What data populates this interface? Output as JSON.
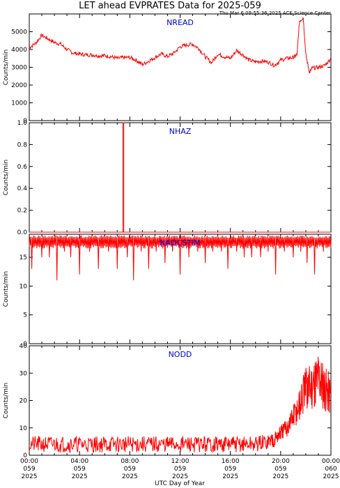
{
  "header": {
    "title": "LET ahead EVPRATES Data for 2025-059",
    "timestamp": "Thu Mar  6 09:55:36 2025 ACE Science Center"
  },
  "colors": {
    "line": "#ff0000",
    "panel_title": "#0000cc",
    "axis": "#000000"
  },
  "x_axis": {
    "label": "UTC Day of Year",
    "range_hours": [
      0,
      24
    ],
    "ticks": [
      {
        "hours": 0,
        "time": "00:00",
        "doy": "059",
        "year": "2025"
      },
      {
        "hours": 4,
        "time": "04:00",
        "doy": "059",
        "year": "2025"
      },
      {
        "hours": 8,
        "time": "08:00",
        "doy": "059",
        "year": "2025"
      },
      {
        "hours": 12,
        "time": "12:00",
        "doy": "059",
        "year": "2025"
      },
      {
        "hours": 16,
        "time": "16:00",
        "doy": "059",
        "year": "2025"
      },
      {
        "hours": 20,
        "time": "20:00",
        "doy": "059",
        "year": "2025"
      },
      {
        "hours": 24,
        "time": "00:00",
        "doy": "060",
        "year": "2025"
      }
    ]
  },
  "chart_data": [
    {
      "type": "line",
      "title": "NREAD",
      "ylabel": "Counts/min",
      "ylim": [
        0,
        6000
      ],
      "yticks": [
        0,
        1000,
        2000,
        3000,
        4000,
        5000
      ],
      "series": [
        {
          "x": [
            0,
            0.5,
            1,
            1.5,
            2,
            2.5,
            3,
            3.5,
            4,
            4.5,
            5,
            5.5,
            6,
            6.5,
            7,
            7.5,
            8,
            8.5,
            9,
            9.5,
            10,
            10.5,
            11,
            11.5,
            12,
            12.5,
            13,
            13.5,
            14,
            14.5,
            15,
            15.5,
            16,
            16.5,
            17,
            17.5,
            18,
            18.5,
            19,
            19.5,
            20,
            20.5,
            21,
            21.3,
            21.5,
            21.8,
            22,
            22.3,
            22.5,
            23,
            23.5,
            24
          ],
          "values": [
            4100,
            4350,
            4800,
            4600,
            4400,
            4300,
            4000,
            3800,
            3750,
            3700,
            3700,
            3650,
            3650,
            3600,
            3500,
            3550,
            3550,
            3400,
            3150,
            3350,
            3550,
            3750,
            3600,
            3800,
            4150,
            4250,
            4300,
            4050,
            3600,
            3250,
            3750,
            3600,
            3500,
            3950,
            3700,
            3400,
            3300,
            3350,
            3300,
            3100,
            3400,
            3500,
            3550,
            3700,
            5600,
            5800,
            3700,
            2700,
            2950,
            3000,
            3100,
            3500
          ]
        }
      ]
    },
    {
      "type": "line",
      "title": "NHAZ",
      "ylabel": "Counts/min",
      "ylim": [
        0,
        1.0
      ],
      "yticks": [
        0.0,
        0.2,
        0.4,
        0.6,
        0.8,
        1.0
      ],
      "series": [
        {
          "x": [
            0,
            7.45,
            7.45,
            7.52,
            7.52,
            24
          ],
          "values": [
            0,
            0,
            1,
            1,
            0,
            0
          ]
        }
      ]
    },
    {
      "type": "line",
      "title": "NADCSTIM",
      "ylabel": "Counts/min",
      "ylim": [
        0,
        19
      ],
      "yticks": [
        0,
        5,
        10,
        15
      ],
      "baseline": 18,
      "dips": [
        [
          0.2,
          13
        ],
        [
          1.0,
          15
        ],
        [
          1.6,
          15
        ],
        [
          2.2,
          11
        ],
        [
          2.8,
          16
        ],
        [
          3.3,
          15
        ],
        [
          4.0,
          12
        ],
        [
          4.8,
          16
        ],
        [
          5.5,
          13
        ],
        [
          6.3,
          16
        ],
        [
          7.0,
          13
        ],
        [
          7.8,
          15
        ],
        [
          8.3,
          11
        ],
        [
          8.9,
          16
        ],
        [
          9.5,
          13
        ],
        [
          10.1,
          16
        ],
        [
          10.8,
          14
        ],
        [
          11.4,
          16
        ],
        [
          12.0,
          12
        ],
        [
          12.7,
          15
        ],
        [
          13.4,
          16
        ],
        [
          14.0,
          14
        ],
        [
          14.6,
          16
        ],
        [
          15.3,
          16
        ],
        [
          15.8,
          13
        ],
        [
          16.5,
          16
        ],
        [
          17.1,
          15
        ],
        [
          17.7,
          15
        ],
        [
          18.4,
          15
        ],
        [
          19.0,
          16
        ],
        [
          19.6,
          12
        ],
        [
          20.3,
          16
        ],
        [
          21.0,
          15
        ],
        [
          21.6,
          16
        ],
        [
          22.1,
          14
        ],
        [
          22.7,
          12
        ],
        [
          23.4,
          16
        ]
      ],
      "noise_low": 16.5,
      "noise_high": 18.8
    },
    {
      "type": "line",
      "title": "NODD",
      "ylabel": "Counts/min",
      "ylim": [
        0,
        40
      ],
      "yticks": [
        0,
        10,
        20,
        30,
        40
      ],
      "series": [
        {
          "x": [
            0,
            1,
            2,
            3,
            4,
            5,
            6,
            7,
            8,
            9,
            10,
            11,
            12,
            13,
            14,
            15,
            16,
            17,
            18,
            19,
            19.5,
            20,
            20.5,
            21,
            21.5,
            22,
            22.5,
            23,
            23.5,
            24
          ],
          "values": [
            4,
            4,
            4,
            4,
            4,
            4,
            4,
            4,
            4,
            4,
            4,
            4,
            4,
            4,
            4,
            4,
            4,
            4,
            4,
            5,
            6,
            8,
            10,
            14,
            18,
            24,
            26,
            29,
            25,
            22
          ]
        }
      ]
    }
  ]
}
